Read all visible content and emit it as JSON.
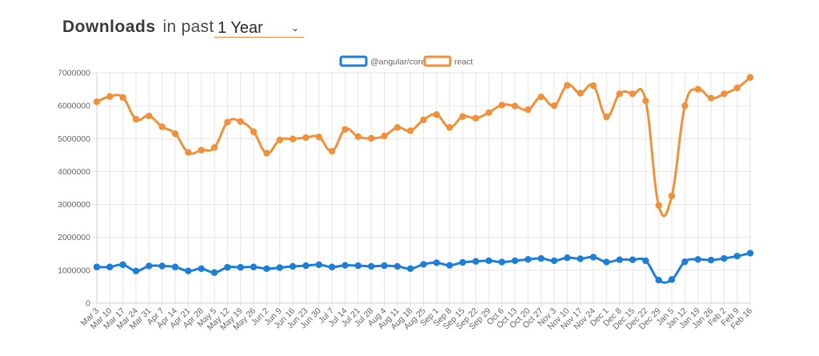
{
  "header": {
    "title": "Downloads",
    "subtitle": "in past",
    "period_value": "1 Year",
    "period_icon": "chevron-down-icon"
  },
  "colors": {
    "angular": "#1c7ed6",
    "react": "#f0913a",
    "grid": "#e6e6e6"
  },
  "chart_data": {
    "type": "line",
    "categories": [
      "Mar 3",
      "Mar 10",
      "Mar 17",
      "Mar 24",
      "Mar 31",
      "Apr 7",
      "Apr 14",
      "Apr 21",
      "Apr 28",
      "May 5",
      "May 12",
      "May 19",
      "May 26",
      "Jun 2",
      "Jun 9",
      "Jun 16",
      "Jun 23",
      "Jun 30",
      "Jul 7",
      "Jul 14",
      "Jul 21",
      "Jul 28",
      "Aug 4",
      "Aug 11",
      "Aug 18",
      "Aug 25",
      "Sep 1",
      "Sep 8",
      "Sep 15",
      "Sep 22",
      "Sep 29",
      "Oct 6",
      "Oct 13",
      "Oct 20",
      "Oct 27",
      "Nov 3",
      "Nov 10",
      "Nov 17",
      "Nov 24",
      "Dec 1",
      "Dec 8",
      "Dec 15",
      "Dec 22",
      "Dec 29",
      "Jan 5",
      "Jan 12",
      "Jan 19",
      "Jan 26",
      "Feb 2",
      "Feb 9",
      "Feb 16"
    ],
    "series": [
      {
        "name": "@angular/core",
        "color": "#1c7ed6",
        "values": [
          1100000,
          1100000,
          1170000,
          980000,
          1130000,
          1130000,
          1100000,
          980000,
          1050000,
          930000,
          1090000,
          1090000,
          1100000,
          1050000,
          1080000,
          1120000,
          1140000,
          1170000,
          1100000,
          1150000,
          1140000,
          1120000,
          1140000,
          1120000,
          1050000,
          1180000,
          1230000,
          1150000,
          1240000,
          1270000,
          1290000,
          1250000,
          1290000,
          1330000,
          1360000,
          1290000,
          1380000,
          1350000,
          1400000,
          1250000,
          1320000,
          1320000,
          1290000,
          700000,
          720000,
          1260000,
          1330000,
          1310000,
          1360000,
          1430000,
          1520000
        ]
      },
      {
        "name": "react",
        "color": "#f0913a",
        "values": [
          6120000,
          6280000,
          6250000,
          5590000,
          5690000,
          5360000,
          5150000,
          4580000,
          4650000,
          4730000,
          5500000,
          5520000,
          5210000,
          4560000,
          4960000,
          4990000,
          5030000,
          5050000,
          4620000,
          5280000,
          5060000,
          5010000,
          5080000,
          5340000,
          5240000,
          5570000,
          5730000,
          5340000,
          5670000,
          5620000,
          5790000,
          6020000,
          5990000,
          5880000,
          6270000,
          6000000,
          6620000,
          6380000,
          6610000,
          5660000,
          6360000,
          6360000,
          6150000,
          2970000,
          3260000,
          6000000,
          6500000,
          6230000,
          6360000,
          6540000,
          6860000
        ]
      }
    ],
    "y_ticks": [
      "0",
      "1000000",
      "2000000",
      "3000000",
      "4000000",
      "5000000",
      "6000000",
      "7000000"
    ],
    "ylim": [
      0,
      7000000
    ],
    "grid": true,
    "legend": "top-center"
  }
}
